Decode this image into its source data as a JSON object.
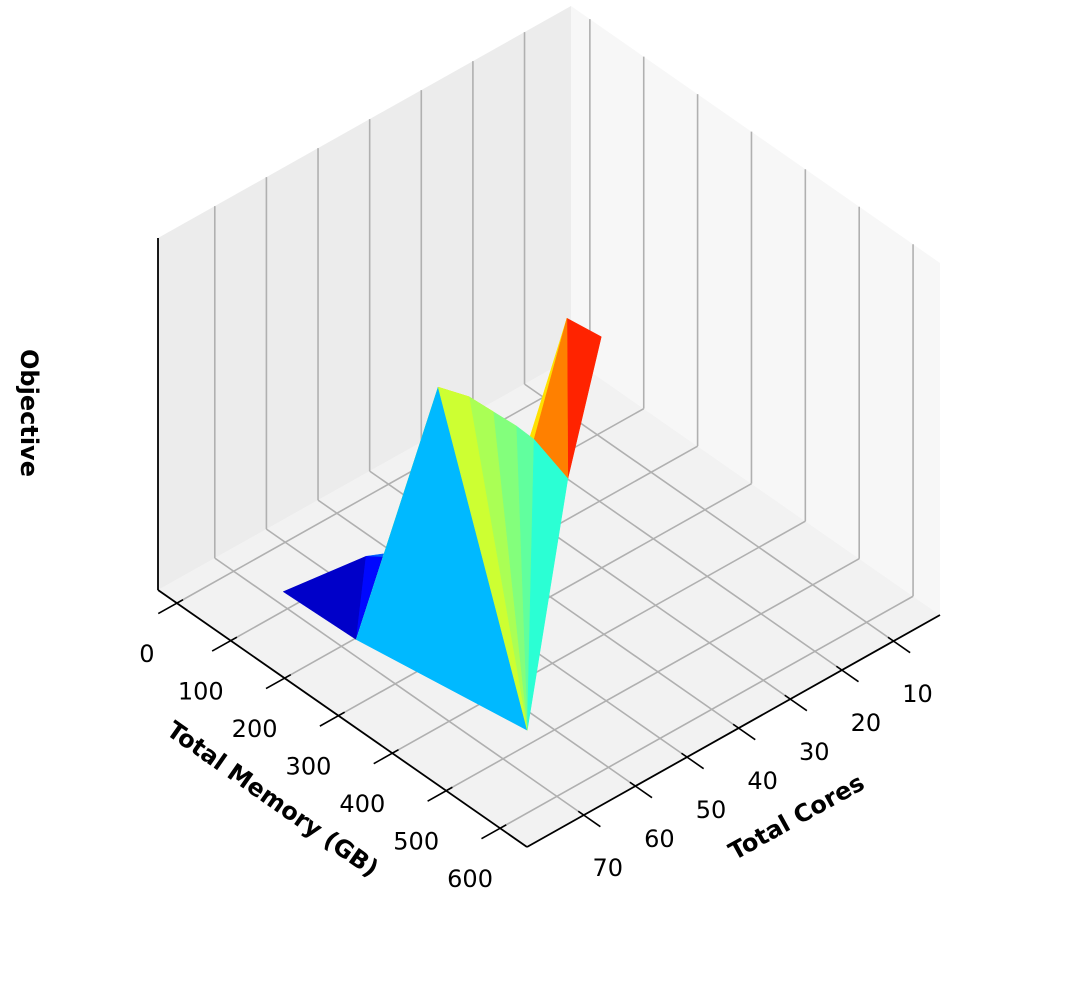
{
  "chart_data": {
    "type": "trisurf3d",
    "xlabel": "Total Memory (GB)",
    "ylabel": "Total Cores",
    "zlabel": "Objective",
    "xlim": [
      -35,
      650
    ],
    "xticks": [
      0,
      100,
      200,
      300,
      400,
      500,
      600
    ],
    "ylim": [
      1,
      81
    ],
    "yticks": [
      10,
      20,
      30,
      40,
      50,
      60,
      70
    ],
    "zlim": [
      0,
      1
    ],
    "colormap": "jet",
    "grid": true,
    "x": [
      92,
      218,
      303,
      478,
      322,
      338,
      352,
      366,
      150,
      250,
      360,
      395,
      400,
      300
    ],
    "y": [
      70,
      69,
      62,
      63,
      58,
      55,
      52,
      50,
      60,
      58,
      43,
      40,
      47,
      50
    ],
    "z": [
      0.04,
      0.03,
      0.78,
      0.0,
      0.74,
      0.69,
      0.64,
      0.6,
      0.12,
      0.2,
      0.88,
      0.84,
      0.5,
      0.25
    ],
    "triangles": [
      [
        0,
        1,
        8
      ],
      [
        1,
        8,
        9
      ],
      [
        8,
        9,
        13
      ],
      [
        9,
        13,
        2
      ],
      [
        1,
        9,
        2
      ],
      [
        1,
        2,
        3
      ],
      [
        2,
        4,
        3
      ],
      [
        4,
        5,
        3
      ],
      [
        5,
        6,
        3
      ],
      [
        6,
        7,
        3
      ],
      [
        7,
        12,
        3
      ],
      [
        7,
        12,
        10
      ],
      [
        12,
        10,
        11
      ],
      [
        13,
        2,
        4
      ],
      [
        13,
        4,
        5
      ],
      [
        13,
        5,
        7
      ],
      [
        13,
        7,
        10
      ],
      [
        1,
        2,
        4
      ],
      [
        1,
        4,
        5
      ]
    ]
  }
}
